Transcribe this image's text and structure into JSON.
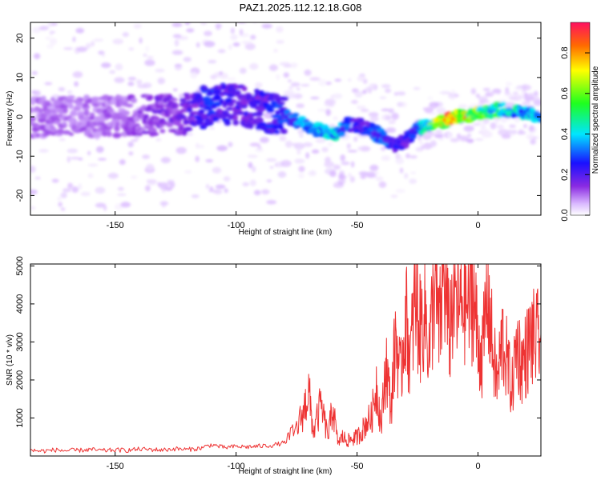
{
  "title": "PAZ1.2025.112.12.18.G08",
  "colors": {
    "snr_line": "#ee3333",
    "spectrogram_ridge": [
      "#ffffff",
      "#e6d3f8",
      "#b888f0",
      "#8a2be2",
      "#3a00e0",
      "#00e0ff",
      "#32ff32",
      "#ffb400",
      "#ff2020"
    ]
  },
  "chart_data": [
    {
      "type": "heatmap",
      "xlabel": "Height of straight line (km)",
      "ylabel": "Frequency (Hz)",
      "xlim": [
        -185,
        26
      ],
      "ylim": [
        -25,
        24
      ],
      "xticks": [
        -150,
        -100,
        -50,
        0
      ],
      "yticks": [
        -20,
        -10,
        0,
        10,
        20
      ],
      "colorbar": {
        "label": "Normalized spectral amplitude",
        "range": [
          0.0,
          0.95
        ],
        "ticks": [
          0.0,
          0.2,
          0.4,
          0.6,
          0.8
        ],
        "colormap": "rainbow"
      },
      "ridge_frequency": {
        "x": [
          -185,
          -150,
          -120,
          -110,
          -100,
          -90,
          -80,
          -70,
          -60,
          -55,
          -50,
          -45,
          -40,
          -35,
          -30,
          -25,
          -20,
          -15,
          -10,
          -5,
          0,
          10,
          20,
          26
        ],
        "y": [
          0,
          0,
          1,
          3,
          3,
          2,
          0,
          -2,
          -5,
          -2,
          -2,
          -3,
          -5,
          -7,
          -6,
          -3,
          -2,
          -1,
          0,
          0,
          1,
          2,
          1,
          0
        ],
        "amplitude": [
          0.12,
          0.12,
          0.2,
          0.3,
          0.22,
          0.25,
          0.3,
          0.4,
          0.45,
          0.35,
          0.25,
          0.3,
          0.35,
          0.3,
          0.25,
          0.35,
          0.6,
          0.8,
          0.95,
          0.9,
          0.7,
          0.5,
          0.45,
          0.4
        ]
      }
    },
    {
      "type": "line",
      "xlabel": "Height of straight line (km)",
      "ylabel": "SNR (10 * v/v)",
      "xlim": [
        -185,
        26
      ],
      "ylim": [
        0,
        5050
      ],
      "xticks": [
        -150,
        -100,
        -50,
        0
      ],
      "yticks": [
        1000,
        2000,
        3000,
        4000,
        5000
      ],
      "series": [
        {
          "x": [
            -185,
            -180,
            -175,
            -170,
            -165,
            -160,
            -155,
            -150,
            -145,
            -140,
            -135,
            -130,
            -125,
            -120,
            -115,
            -110,
            -105,
            -100,
            -95,
            -90,
            -85,
            -80,
            -75,
            -72,
            -70,
            -68,
            -65,
            -62,
            -60,
            -58,
            -56,
            -54,
            -52,
            -50,
            -48,
            -46,
            -44,
            -42,
            -40,
            -38,
            -36,
            -34,
            -32,
            -30,
            -28,
            -26,
            -24,
            -22,
            -20,
            -18,
            -16,
            -14,
            -12,
            -10,
            -8,
            -6,
            -4,
            -2,
            0,
            2,
            4,
            6,
            8,
            10,
            12,
            14,
            16,
            18,
            20,
            22,
            24,
            26
          ],
          "y": [
            150,
            130,
            160,
            140,
            150,
            170,
            140,
            160,
            150,
            180,
            170,
            160,
            190,
            170,
            200,
            300,
            220,
            250,
            240,
            260,
            280,
            350,
            700,
            1200,
            1700,
            600,
            1350,
            500,
            1300,
            350,
            500,
            400,
            450,
            500,
            650,
            900,
            1000,
            1900,
            800,
            2500,
            1200,
            3200,
            2000,
            3800,
            2500,
            4200,
            3300,
            3900,
            2700,
            4700,
            3200,
            5000,
            3100,
            4400,
            3800,
            4300,
            3900,
            4400,
            2900,
            2700,
            4400,
            2800,
            1900,
            3100,
            2500,
            1700,
            3000,
            2400,
            2700,
            3100,
            3000,
            3200
          ]
        }
      ]
    }
  ]
}
